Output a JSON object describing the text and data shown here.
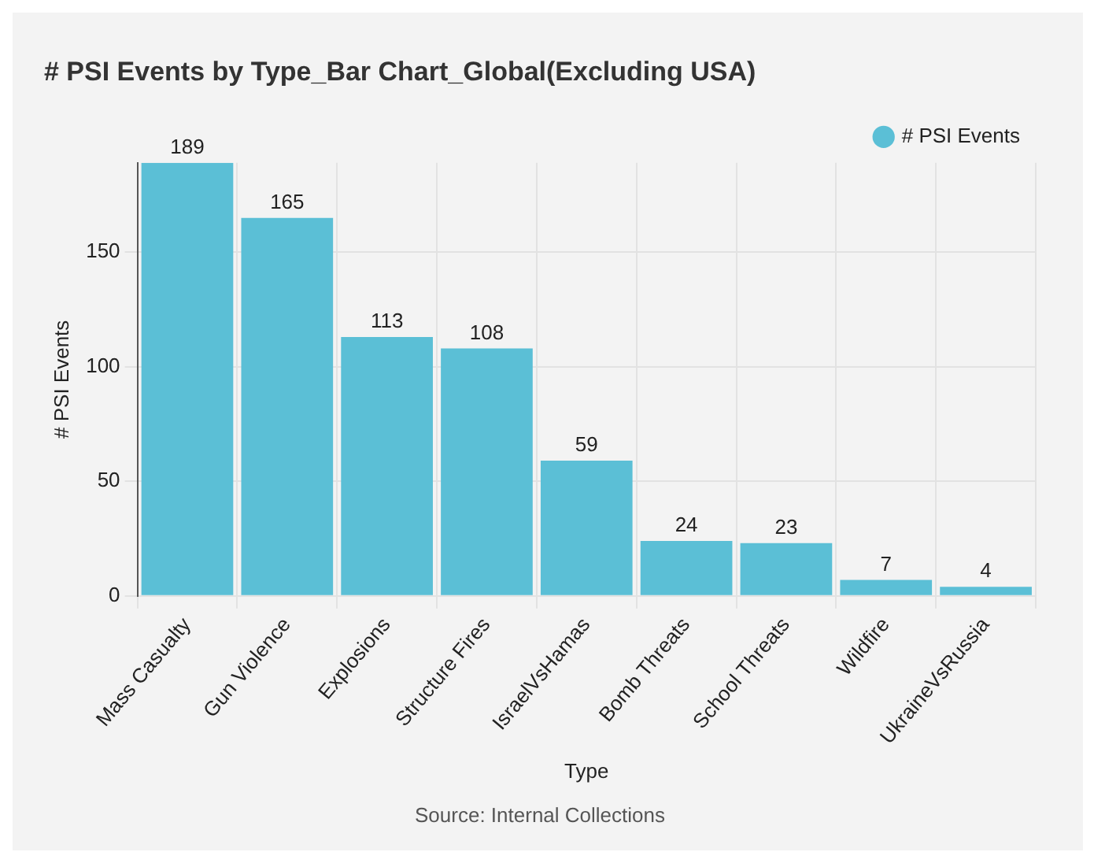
{
  "chart_data": {
    "type": "bar",
    "title": "# PSI Events by Type_Bar Chart_Global(Excluding USA)",
    "xlabel": "Type",
    "ylabel": "# PSI Events",
    "categories": [
      "Mass Casualty",
      "Gun Violence",
      "Explosions",
      "Structure Fires",
      "IsraelVsHamas",
      "Bomb Threats",
      "School Threats",
      "Wildfire",
      "UkraineVsRussia"
    ],
    "series": [
      {
        "name": "# PSI Events",
        "color": "#5bbfd6",
        "values": [
          189,
          165,
          113,
          108,
          59,
          24,
          23,
          7,
          4
        ]
      }
    ],
    "ylim": [
      0,
      189
    ],
    "yticks": [
      0,
      50,
      100,
      150
    ],
    "grid": true,
    "legend": "top right",
    "data_labels": true,
    "annotations": [
      "Source: Internal Collections"
    ]
  }
}
